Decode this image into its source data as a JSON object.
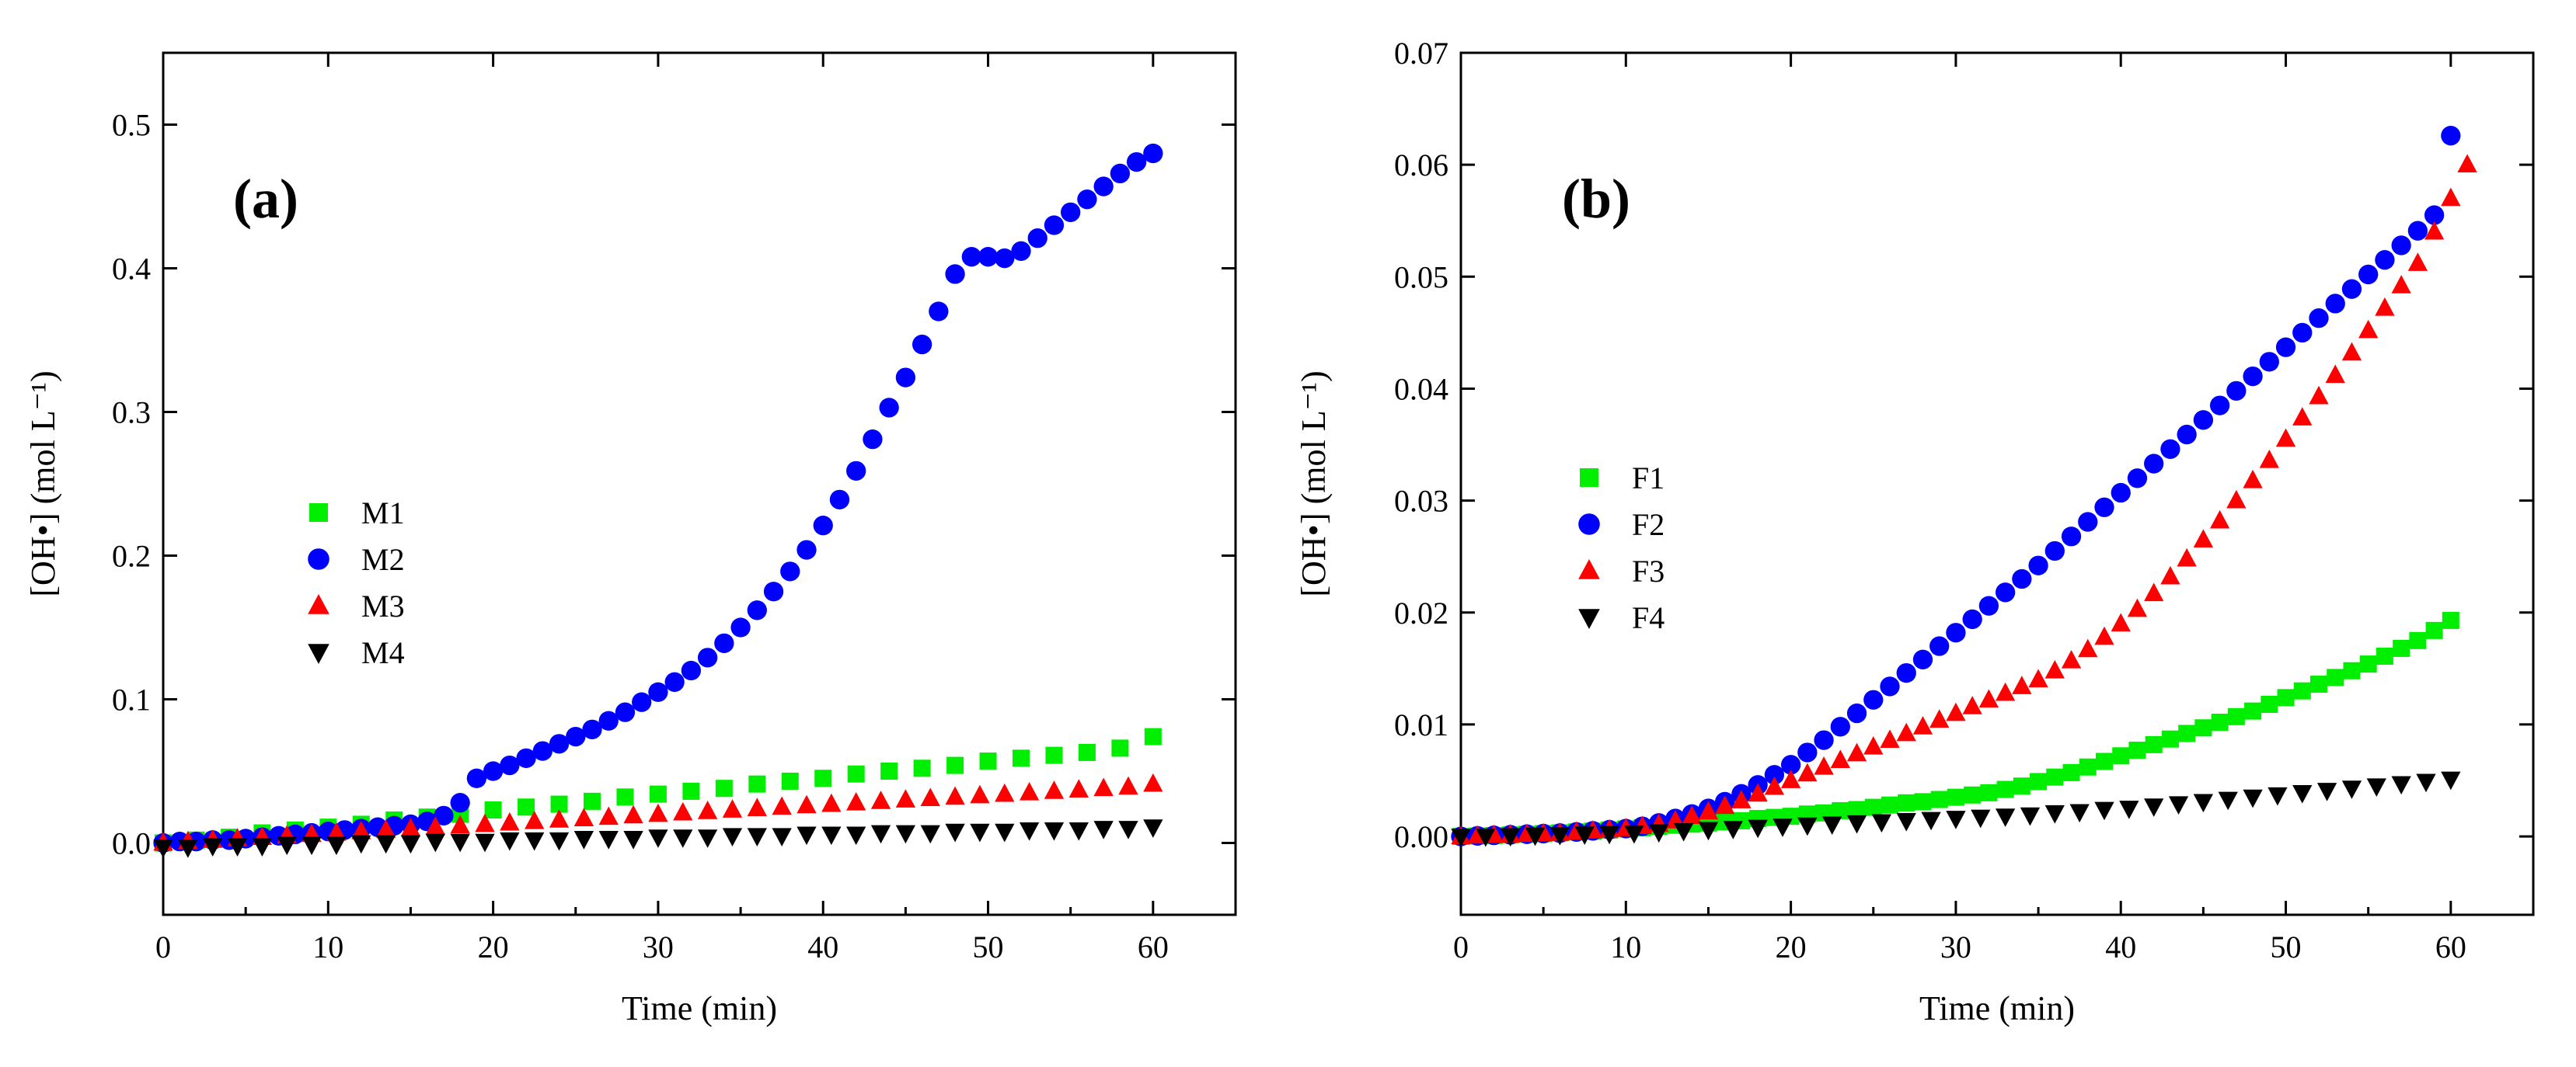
{
  "figure": {
    "colors": {
      "M1": "#00ee00",
      "M2": "#0000ff",
      "M3": "#ff0000",
      "M4": "#000000"
    }
  },
  "chart_data": [
    {
      "type": "scatter",
      "panel_label": "(a)",
      "xlabel": "Time (min)",
      "ylabel": "[OH•] (mol L⁻¹)",
      "xlim": [
        0,
        65
      ],
      "ylim": [
        -0.05,
        0.55
      ],
      "xticks": [
        0,
        10,
        20,
        30,
        40,
        50,
        60
      ],
      "yticks": [
        0.0,
        0.1,
        0.2,
        0.3,
        0.4,
        0.5
      ],
      "ytick_decimals": 1,
      "legend_position": "center-left",
      "series": [
        {
          "name": "M1",
          "marker": "square",
          "color": "#00ee00",
          "x": [
            0,
            2,
            4,
            6,
            8,
            10,
            12,
            14,
            16,
            18,
            20,
            22,
            24,
            26,
            28,
            30,
            32,
            34,
            36,
            38,
            40,
            42,
            44,
            46,
            48,
            50,
            52,
            54,
            56,
            58,
            60
          ],
          "y": [
            0.0,
            0.002,
            0.004,
            0.007,
            0.009,
            0.011,
            0.013,
            0.016,
            0.018,
            0.02,
            0.023,
            0.025,
            0.027,
            0.029,
            0.032,
            0.034,
            0.036,
            0.038,
            0.041,
            0.043,
            0.045,
            0.048,
            0.05,
            0.052,
            0.054,
            0.057,
            0.059,
            0.061,
            0.063,
            0.066,
            0.074
          ]
        },
        {
          "name": "M2",
          "marker": "circle",
          "color": "#0000ff",
          "x": [
            0,
            1,
            2,
            3,
            4,
            5,
            6,
            7,
            8,
            9,
            10,
            11,
            12,
            13,
            14,
            15,
            16,
            17,
            18,
            19,
            20,
            21,
            22,
            23,
            24,
            25,
            26,
            27,
            28,
            29,
            30,
            31,
            32,
            33,
            34,
            35,
            36,
            37,
            38,
            39,
            40,
            41,
            42,
            43,
            44,
            45,
            46,
            47,
            48,
            49,
            50,
            51,
            52,
            53,
            54,
            55,
            56,
            57,
            58,
            59,
            60
          ],
          "y": [
            0.0,
            0.001,
            0.001,
            0.002,
            0.002,
            0.003,
            0.004,
            0.005,
            0.006,
            0.007,
            0.008,
            0.009,
            0.01,
            0.011,
            0.012,
            0.013,
            0.015,
            0.019,
            0.028,
            0.045,
            0.05,
            0.054,
            0.059,
            0.064,
            0.069,
            0.074,
            0.079,
            0.085,
            0.091,
            0.098,
            0.105,
            0.112,
            0.12,
            0.129,
            0.139,
            0.15,
            0.162,
            0.175,
            0.189,
            0.204,
            0.221,
            0.239,
            0.259,
            0.281,
            0.303,
            0.324,
            0.347,
            0.37,
            0.396,
            0.408,
            0.408,
            0.407,
            0.412,
            0.421,
            0.43,
            0.439,
            0.448,
            0.457,
            0.466,
            0.474,
            0.48
          ]
        },
        {
          "name": "M3",
          "marker": "triangle-up",
          "color": "#ff0000",
          "x": [
            0,
            1.5,
            3,
            4.5,
            6,
            7.5,
            9,
            10.5,
            12,
            13.5,
            15,
            16.5,
            18,
            19.5,
            21,
            22.5,
            24,
            25.5,
            27,
            28.5,
            30,
            31.5,
            33,
            34.5,
            36,
            37.5,
            39,
            40.5,
            42,
            43.5,
            45,
            46.5,
            48,
            49.5,
            51,
            52.5,
            54,
            55.5,
            57,
            58.5,
            60
          ],
          "y": [
            0.0,
            0.001,
            0.002,
            0.003,
            0.004,
            0.005,
            0.006,
            0.007,
            0.008,
            0.009,
            0.01,
            0.011,
            0.012,
            0.013,
            0.014,
            0.015,
            0.016,
            0.017,
            0.018,
            0.019,
            0.02,
            0.021,
            0.022,
            0.023,
            0.024,
            0.025,
            0.026,
            0.027,
            0.028,
            0.029,
            0.03,
            0.031,
            0.032,
            0.033,
            0.034,
            0.035,
            0.036,
            0.037,
            0.038,
            0.039,
            0.041
          ]
        },
        {
          "name": "M4",
          "marker": "triangle-down",
          "color": "#000000",
          "x": [
            0,
            1.5,
            3,
            4.5,
            6,
            7.5,
            9,
            10.5,
            12,
            13.5,
            15,
            16.5,
            18,
            19.5,
            21,
            22.5,
            24,
            25.5,
            27,
            28.5,
            30,
            31.5,
            33,
            34.5,
            36,
            37.5,
            39,
            40.5,
            42,
            43.5,
            45,
            46.5,
            48,
            49.5,
            51,
            52.5,
            54,
            55.5,
            57,
            58.5,
            60
          ],
          "y": [
            -0.003,
            -0.003,
            -0.002,
            -0.002,
            -0.002,
            -0.001,
            -0.001,
            -0.001,
            0.0,
            0.0,
            0.0,
            0.001,
            0.001,
            0.001,
            0.002,
            0.002,
            0.002,
            0.003,
            0.003,
            0.003,
            0.004,
            0.004,
            0.004,
            0.005,
            0.005,
            0.005,
            0.006,
            0.006,
            0.006,
            0.007,
            0.007,
            0.007,
            0.008,
            0.008,
            0.008,
            0.009,
            0.009,
            0.009,
            0.01,
            0.01,
            0.011
          ]
        }
      ]
    },
    {
      "type": "scatter",
      "panel_label": "(b)",
      "xlabel": "Time (min)",
      "ylabel": "[OH•] (mol L⁻¹)",
      "xlim": [
        0,
        65
      ],
      "ylim": [
        -0.007,
        0.07
      ],
      "xticks": [
        0,
        10,
        20,
        30,
        40,
        50,
        60
      ],
      "yticks": [
        0.0,
        0.01,
        0.02,
        0.03,
        0.04,
        0.05,
        0.06,
        0.07
      ],
      "ytick_decimals": 2,
      "legend_position": "center-left",
      "series": [
        {
          "name": "F1",
          "marker": "square",
          "color": "#00ee00",
          "x": [
            0,
            1,
            2,
            3,
            4,
            5,
            6,
            7,
            8,
            9,
            10,
            11,
            12,
            13,
            14,
            15,
            16,
            17,
            18,
            19,
            20,
            21,
            22,
            23,
            24,
            25,
            26,
            27,
            28,
            29,
            30,
            31,
            32,
            33,
            34,
            35,
            36,
            37,
            38,
            39,
            40,
            41,
            42,
            43,
            44,
            45,
            46,
            47,
            48,
            49,
            50,
            51,
            52,
            53,
            54,
            55,
            56,
            57,
            58,
            59,
            60
          ],
          "y": [
            0.0,
            4e-05,
            8e-05,
            0.00013,
            0.00019,
            0.00025,
            0.00032,
            0.0004,
            0.00048,
            0.00057,
            0.00067,
            0.00078,
            0.00089,
            0.001,
            0.0011,
            0.0012,
            0.0013,
            0.0014,
            0.0016,
            0.0017,
            0.0018,
            0.002,
            0.0021,
            0.0023,
            0.0024,
            0.0026,
            0.0028,
            0.003,
            0.0031,
            0.0033,
            0.0035,
            0.0037,
            0.0039,
            0.0042,
            0.0045,
            0.0049,
            0.0053,
            0.0057,
            0.0062,
            0.0067,
            0.0072,
            0.0077,
            0.0082,
            0.0087,
            0.0092,
            0.0097,
            0.0102,
            0.0107,
            0.0112,
            0.0118,
            0.0124,
            0.013,
            0.0136,
            0.0142,
            0.0148,
            0.0154,
            0.0161,
            0.0168,
            0.0175,
            0.0184,
            0.0193
          ]
        },
        {
          "name": "F2",
          "marker": "circle",
          "color": "#0000ff",
          "x": [
            0,
            1,
            2,
            3,
            4,
            5,
            6,
            7,
            8,
            9,
            10,
            11,
            12,
            13,
            14,
            15,
            16,
            17,
            18,
            19,
            20,
            21,
            22,
            23,
            24,
            25,
            26,
            27,
            28,
            29,
            30,
            31,
            32,
            33,
            34,
            35,
            36,
            37,
            38,
            39,
            40,
            41,
            42,
            43,
            44,
            45,
            46,
            47,
            48,
            49,
            50,
            51,
            52,
            53,
            54,
            55,
            56,
            57,
            58,
            59,
            60
          ],
          "y": [
            0.0,
            5e-05,
            0.0001,
            0.00015,
            0.0002,
            0.00025,
            0.0003,
            0.0004,
            0.0005,
            0.0006,
            0.0007,
            0.0009,
            0.0012,
            0.0016,
            0.002,
            0.0025,
            0.0031,
            0.0038,
            0.0046,
            0.0055,
            0.0064,
            0.0075,
            0.0086,
            0.0098,
            0.011,
            0.0122,
            0.0134,
            0.0146,
            0.0158,
            0.017,
            0.0182,
            0.0194,
            0.0206,
            0.0218,
            0.023,
            0.0242,
            0.0255,
            0.0268,
            0.0281,
            0.0294,
            0.0307,
            0.032,
            0.0333,
            0.0346,
            0.0359,
            0.0372,
            0.0385,
            0.0398,
            0.0411,
            0.0424,
            0.0437,
            0.045,
            0.0463,
            0.0476,
            0.0489,
            0.0502,
            0.0515,
            0.0528,
            0.0541,
            0.0555,
            0.0626
          ]
        },
        {
          "name": "F3",
          "marker": "triangle-up",
          "color": "#ff0000",
          "x": [
            0,
            1,
            2,
            3,
            4,
            5,
            6,
            7,
            8,
            9,
            10,
            11,
            12,
            13,
            14,
            15,
            16,
            17,
            18,
            19,
            20,
            21,
            22,
            23,
            24,
            25,
            26,
            27,
            28,
            29,
            30,
            31,
            32,
            33,
            34,
            35,
            36,
            37,
            38,
            39,
            40,
            41,
            42,
            43,
            44,
            45,
            46,
            47,
            48,
            49,
            50,
            51,
            52,
            53,
            54,
            55,
            56,
            57,
            58,
            59,
            60,
            61
          ],
          "y": [
            0.0,
            5e-05,
            0.0001,
            0.00015,
            0.0002,
            0.00025,
            0.0003,
            0.0004,
            0.0005,
            0.0006,
            0.0007,
            0.0009,
            0.0011,
            0.0014,
            0.0018,
            0.0022,
            0.0027,
            0.0032,
            0.0038,
            0.0044,
            0.005,
            0.0056,
            0.0062,
            0.0068,
            0.0074,
            0.008,
            0.0086,
            0.0092,
            0.0098,
            0.0104,
            0.011,
            0.0116,
            0.0122,
            0.0128,
            0.0134,
            0.014,
            0.0148,
            0.0157,
            0.0167,
            0.0178,
            0.019,
            0.0203,
            0.0217,
            0.0232,
            0.0248,
            0.0265,
            0.0282,
            0.03,
            0.0318,
            0.0336,
            0.0355,
            0.0374,
            0.0393,
            0.0412,
            0.0432,
            0.0452,
            0.0472,
            0.0492,
            0.0512,
            0.054,
            0.057,
            0.06
          ]
        },
        {
          "name": "F4",
          "marker": "triangle-down",
          "color": "#000000",
          "x": [
            0,
            1.5,
            3,
            4.5,
            6,
            7.5,
            9,
            10.5,
            12,
            13.5,
            15,
            16.5,
            18,
            19.5,
            21,
            22.5,
            24,
            25.5,
            27,
            28.5,
            30,
            31.5,
            33,
            34.5,
            36,
            37.5,
            39,
            40.5,
            42,
            43.5,
            45,
            46.5,
            48,
            49.5,
            51,
            52.5,
            54,
            55.5,
            57,
            58.5,
            60
          ],
          "y": [
            0.0,
            2e-05,
            5e-05,
            0.0001,
            0.00015,
            0.0002,
            0.00025,
            0.0003,
            0.0004,
            0.0005,
            0.0006,
            0.0007,
            0.0008,
            0.0009,
            0.001,
            0.0011,
            0.0012,
            0.0013,
            0.0014,
            0.0015,
            0.0016,
            0.0017,
            0.0018,
            0.0019,
            0.0021,
            0.0022,
            0.0024,
            0.0025,
            0.0027,
            0.0029,
            0.0031,
            0.0033,
            0.0035,
            0.0037,
            0.0039,
            0.0041,
            0.0043,
            0.0045,
            0.0047,
            0.0049,
            0.0051
          ]
        }
      ]
    }
  ]
}
